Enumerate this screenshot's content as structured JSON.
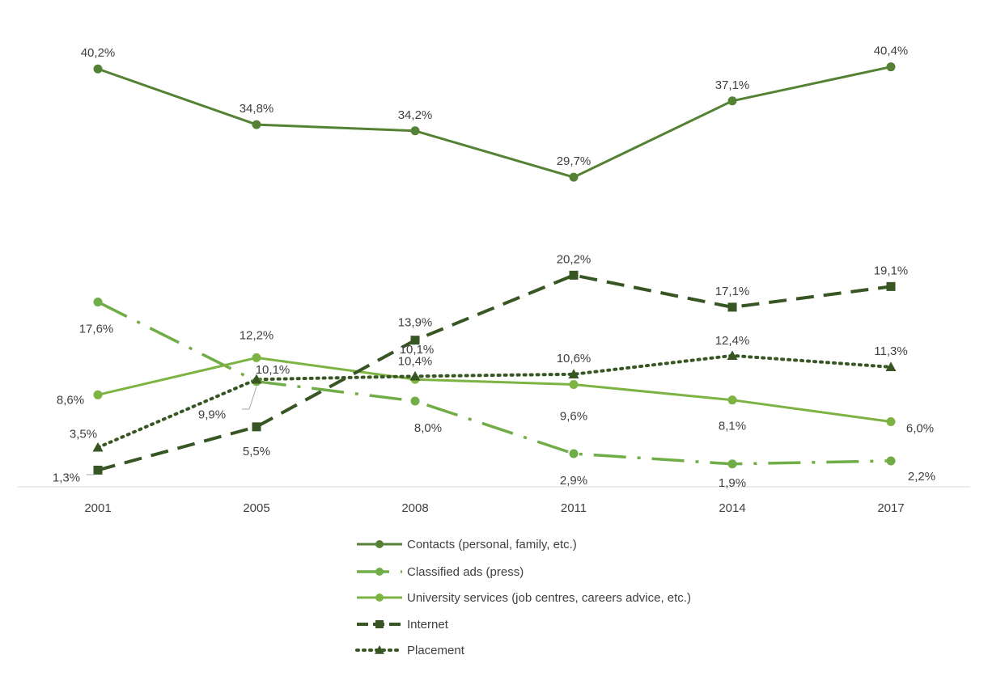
{
  "chart_data": {
    "type": "line",
    "title": "",
    "xlabel": "",
    "ylabel": "",
    "categories": [
      "2001",
      "2005",
      "2008",
      "2011",
      "2014",
      "2017"
    ],
    "ylim": [
      0,
      45
    ],
    "grid": false,
    "legend_position": "bottom",
    "series": [
      {
        "name": "Contacts (personal, family, etc.)",
        "values": [
          40.2,
          34.8,
          34.2,
          29.7,
          37.1,
          40.4
        ],
        "labels": [
          "40,2%",
          "34,8%",
          "34,2%",
          "29,7%",
          "37,1%",
          "40,4%"
        ],
        "color": "#548235",
        "dash": "solid",
        "marker": "circle"
      },
      {
        "name": "Classified ads (press)",
        "values": [
          17.6,
          9.9,
          8.0,
          2.9,
          1.9,
          2.2
        ],
        "labels": [
          "17,6%",
          "9,9%",
          "8,0%",
          "2,9%",
          "1,9%",
          "2,2%"
        ],
        "color": "#70AD47",
        "dash": "dashdot",
        "marker": "circle"
      },
      {
        "name": "University services (job centres, careers advice, etc.)",
        "values": [
          8.6,
          12.2,
          10.1,
          9.6,
          8.1,
          6.0
        ],
        "labels": [
          "8,6%",
          "12,2%",
          "10,1%",
          "9,6%",
          "8,1%",
          "6,0%"
        ],
        "color": "#7CB342",
        "dash": "solid",
        "marker": "circle"
      },
      {
        "name": "Internet",
        "values": [
          1.3,
          5.5,
          13.9,
          20.2,
          17.1,
          19.1
        ],
        "labels": [
          "1,3%",
          "5,5%",
          "13,9%",
          "20,2%",
          "17,1%",
          "19,1%"
        ],
        "color": "#375623",
        "dash": "dash",
        "marker": "square"
      },
      {
        "name": "Placement",
        "values": [
          3.5,
          10.1,
          10.4,
          10.6,
          12.4,
          11.3
        ],
        "labels": [
          "3,5%",
          "10,1%",
          "10,4%",
          "10,6%",
          "12,4%",
          "11,3%"
        ],
        "color": "#375623",
        "dash": "dot",
        "marker": "triangle"
      }
    ]
  }
}
